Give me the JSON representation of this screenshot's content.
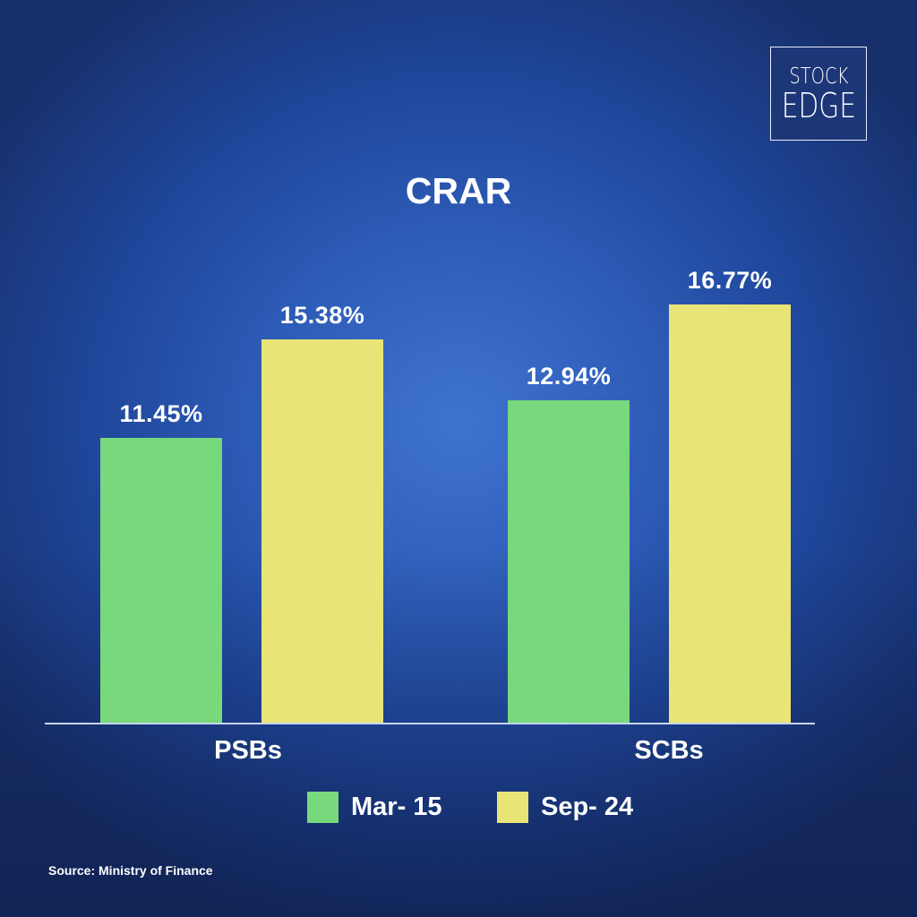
{
  "logo": {
    "line1": "STOCK",
    "line2": "EDGE"
  },
  "chart_data": {
    "type": "bar",
    "title": "CRAR",
    "categories": [
      "PSBs",
      "SCBs"
    ],
    "series": [
      {
        "name": "Mar- 15",
        "color": "#77d87c",
        "values": [
          11.45,
          12.94
        ],
        "labels": [
          "11.45%",
          "12.94%"
        ]
      },
      {
        "name": "Sep- 24",
        "color": "#e8e576",
        "values": [
          15.38,
          16.77
        ],
        "labels": [
          "15.38%",
          "16.77%"
        ]
      }
    ],
    "xlabel": "",
    "ylabel": "",
    "grid": false,
    "legend_position": "bottom",
    "unit": "%"
  },
  "legend": [
    {
      "label": "Mar- 15",
      "color": "#77d87c"
    },
    {
      "label": "Sep- 24",
      "color": "#e8e576"
    }
  ],
  "footer": {
    "source": "Source: Ministry of Finance"
  }
}
